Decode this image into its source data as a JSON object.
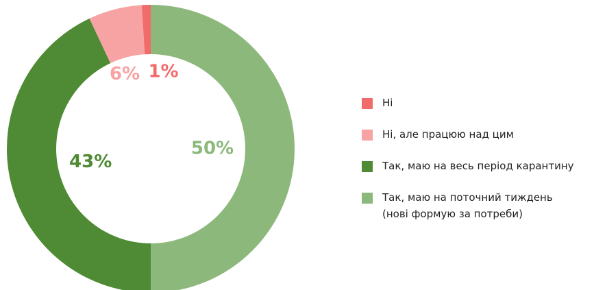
{
  "chart_data": {
    "type": "donut",
    "categories": [
      "Ні",
      "Ні, але працюю над цим",
      "Так, маю на весь період карантину",
      "Так, маю на поточний тиждень\n(нові формую за потреби)"
    ],
    "values": [
      1,
      6,
      43,
      50
    ],
    "value_labels": [
      "1%",
      "6%",
      "43%",
      "50%"
    ],
    "colors": [
      "#f26b6b",
      "#f7a3a3",
      "#4f8a34",
      "#8db87b"
    ],
    "legend": "right"
  }
}
